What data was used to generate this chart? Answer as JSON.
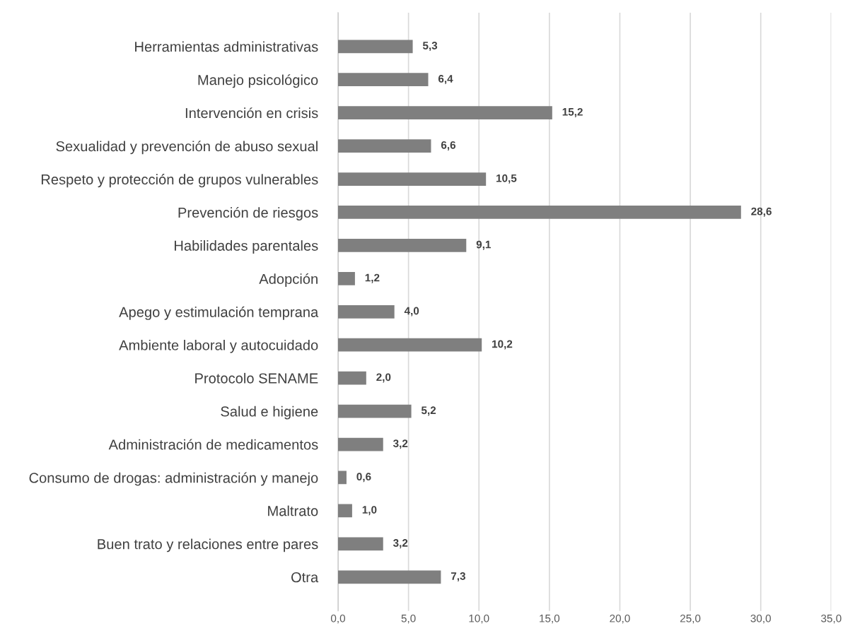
{
  "chart_data": {
    "type": "bar",
    "orientation": "horizontal",
    "categories": [
      "Herramientas administrativas",
      "Manejo psicológico",
      "Intervención en crisis",
      "Sexualidad y prevención de abuso sexual",
      "Respeto y protección de grupos vulnerables",
      "Prevención de riesgos",
      "Habilidades parentales",
      "Adopción",
      "Apego y estimulación temprana",
      "Ambiente laboral y autocuidado",
      "Protocolo SENAME",
      "Salud e higiene",
      "Administración de medicamentos",
      "Consumo de drogas: administración y manejo",
      "Maltrato",
      "Buen trato y relaciones entre pares",
      "Otra"
    ],
    "values": [
      5.3,
      6.4,
      15.2,
      6.6,
      10.5,
      28.6,
      9.1,
      1.2,
      4.0,
      10.2,
      2.0,
      5.2,
      3.2,
      0.6,
      1.0,
      3.2,
      7.3
    ],
    "value_labels": [
      "5,3",
      "6,4",
      "15,2",
      "6,6",
      "10,5",
      "28,6",
      "9,1",
      "1,2",
      "4,0",
      "10,2",
      "2,0",
      "5,2",
      "3,2",
      "0,6",
      "1,0",
      "3,2",
      "7,3"
    ],
    "color": "#7f7f7f",
    "xlim": [
      0,
      35
    ],
    "xticks": [
      {
        "value": 0,
        "label": "0,0"
      },
      {
        "value": 5,
        "label": "5,0"
      },
      {
        "value": 10,
        "label": "10,0"
      },
      {
        "value": 15,
        "label": "15,0"
      },
      {
        "value": 20,
        "label": "20,0"
      },
      {
        "value": 25,
        "label": "25,0"
      },
      {
        "value": 30,
        "label": "30,0"
      },
      {
        "value": 35,
        "label": "35,0"
      }
    ],
    "grid": "x"
  }
}
